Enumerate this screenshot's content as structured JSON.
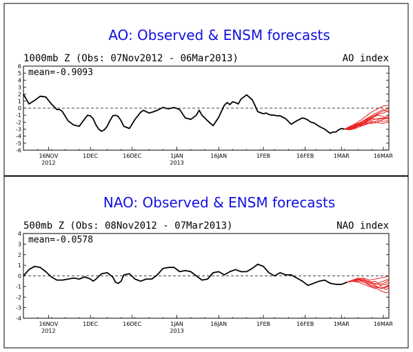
{
  "colors": {
    "observed": "#000000",
    "forecast": "#e82020",
    "title": "#1010e0",
    "frame": "#000000"
  },
  "chart_data": [
    {
      "type": "line",
      "title": "AO: Observed & ENSM forecasts",
      "subtitle": "1000mb Z (Obs: 07Nov2012 - 06Mar2013)",
      "index_label": "AO index",
      "mean_label": "mean=-0.9093",
      "ylim": [
        -6,
        6
      ],
      "yticks": [
        -6,
        -5,
        -4,
        -3,
        -2,
        -1,
        0,
        1,
        2,
        3,
        4,
        5,
        6
      ],
      "xlim_days": [
        0,
        131
      ],
      "xticks": [
        {
          "day": 9,
          "lines": [
            "16NOV",
            "2012"
          ]
        },
        {
          "day": 24,
          "lines": [
            "1DEC"
          ]
        },
        {
          "day": 39,
          "lines": [
            "16DEC"
          ]
        },
        {
          "day": 55,
          "lines": [
            "1JAN",
            "2013"
          ]
        },
        {
          "day": 70,
          "lines": [
            "16JAN"
          ]
        },
        {
          "day": 86,
          "lines": [
            "1FEB"
          ]
        },
        {
          "day": 101,
          "lines": [
            "16FEB"
          ]
        },
        {
          "day": 114,
          "lines": [
            "1MAR"
          ]
        },
        {
          "day": 129,
          "lines": [
            "16MAR"
          ]
        }
      ],
      "observed": {
        "x": [
          0,
          2,
          4,
          6,
          8,
          10,
          11,
          12,
          13,
          14,
          16,
          18,
          20,
          22,
          23,
          24,
          25,
          26,
          27,
          28,
          29,
          30,
          31,
          32,
          33,
          34,
          35,
          36,
          38,
          40,
          42,
          43,
          44,
          45,
          46,
          48,
          50,
          52,
          54,
          56,
          58,
          60,
          62,
          63,
          64,
          66,
          68,
          70,
          72,
          73,
          74,
          75,
          76,
          77,
          78,
          80,
          82,
          83,
          84,
          86,
          87,
          88,
          89,
          90,
          91,
          92,
          94,
          96,
          98,
          100,
          101,
          102,
          103,
          104,
          106,
          108,
          110,
          111,
          112,
          113,
          114,
          115
        ],
        "y": [
          2.0,
          0.6,
          1.1,
          1.7,
          1.6,
          0.6,
          0.2,
          -0.2,
          -0.2,
          -0.5,
          -1.8,
          -2.4,
          -2.6,
          -1.5,
          -1.0,
          -1.1,
          -1.5,
          -2.4,
          -3.0,
          -3.3,
          -3.1,
          -2.6,
          -1.8,
          -1.1,
          -1.0,
          -1.2,
          -1.8,
          -2.6,
          -2.9,
          -1.6,
          -0.6,
          -0.3,
          -0.5,
          -0.7,
          -0.6,
          -0.3,
          0.1,
          -0.1,
          0.1,
          -0.2,
          -1.4,
          -1.6,
          -1.0,
          -0.3,
          -1.0,
          -1.8,
          -2.5,
          -1.3,
          0.4,
          0.8,
          0.5,
          0.9,
          0.8,
          0.6,
          1.3,
          1.9,
          1.2,
          0.4,
          -0.5,
          -0.8,
          -0.7,
          -0.9,
          -1.0,
          -1.0,
          -1.1,
          -1.1,
          -1.5,
          -2.3,
          -1.8,
          -1.4,
          -1.5,
          -1.7,
          -2.0,
          -2.1,
          -2.6,
          -3.0,
          -3.6,
          -3.4,
          -3.4,
          -3.1,
          -2.9,
          -3.0
        ]
      },
      "forecast_x": [
        115,
        117,
        119,
        121,
        123,
        125,
        127,
        129,
        131
      ],
      "forecast_members": [
        [
          -3.0,
          -2.6,
          -2.2,
          -1.7,
          -1.1,
          -0.5,
          -0.1,
          0.3,
          0.4
        ],
        [
          -3.0,
          -2.8,
          -2.3,
          -2.0,
          -1.5,
          -1.0,
          -0.6,
          -0.2,
          -0.6
        ],
        [
          -3.0,
          -2.9,
          -2.5,
          -2.2,
          -1.8,
          -1.4,
          -1.0,
          -1.2,
          -1.6
        ],
        [
          -3.0,
          -3.0,
          -2.7,
          -2.4,
          -2.0,
          -1.7,
          -1.5,
          -1.4,
          -1.1
        ],
        [
          -3.0,
          -3.1,
          -2.8,
          -2.6,
          -2.3,
          -2.0,
          -1.8,
          -1.9,
          -1.7
        ],
        [
          -3.0,
          -2.7,
          -2.4,
          -2.1,
          -1.6,
          -1.2,
          -0.8,
          -0.4,
          0.0
        ],
        [
          -3.0,
          -2.9,
          -2.6,
          -2.3,
          -1.9,
          -1.5,
          -1.6,
          -1.5,
          -1.3
        ],
        [
          -3.0,
          -3.1,
          -2.9,
          -2.5,
          -2.2,
          -1.9,
          -2.1,
          -2.2,
          -1.9
        ],
        [
          -3.0,
          -2.8,
          -2.5,
          -2.0,
          -1.7,
          -1.3,
          -0.9,
          -0.7,
          -0.3
        ],
        [
          -3.0,
          -3.0,
          -2.7,
          -2.3,
          -2.1,
          -2.2,
          -2.0,
          -1.6,
          -1.4
        ]
      ]
    },
    {
      "type": "line",
      "title": "NAO: Observed & ENSM forecasts",
      "subtitle": "500mb Z (Obs: 08Nov2012 - 07Mar2013)",
      "index_label": "NAO index",
      "mean_label": "mean=-0.0578",
      "ylim": [
        -4,
        4
      ],
      "yticks": [
        -4,
        -3,
        -2,
        -1,
        0,
        1,
        2,
        3,
        4
      ],
      "xlim_days": [
        0,
        131
      ],
      "xticks": [
        {
          "day": 9,
          "lines": [
            "16NOV",
            "2012"
          ]
        },
        {
          "day": 24,
          "lines": [
            "1DEC"
          ]
        },
        {
          "day": 39,
          "lines": [
            "16DEC"
          ]
        },
        {
          "day": 55,
          "lines": [
            "1JAN",
            "2013"
          ]
        },
        {
          "day": 70,
          "lines": [
            "16JAN"
          ]
        },
        {
          "day": 86,
          "lines": [
            "1FEB"
          ]
        },
        {
          "day": 101,
          "lines": [
            "16FEB"
          ]
        },
        {
          "day": 114,
          "lines": [
            "1MAR"
          ]
        },
        {
          "day": 129,
          "lines": [
            "16MAR"
          ]
        }
      ],
      "observed": {
        "x": [
          0,
          2,
          4,
          6,
          8,
          10,
          12,
          14,
          16,
          18,
          20,
          22,
          24,
          25,
          26,
          28,
          30,
          32,
          33,
          34,
          35,
          36,
          38,
          40,
          42,
          44,
          46,
          48,
          50,
          52,
          54,
          56,
          58,
          60,
          62,
          64,
          66,
          68,
          70,
          72,
          74,
          76,
          78,
          80,
          82,
          84,
          86,
          88,
          90,
          92,
          94,
          96,
          98,
          100,
          102,
          104,
          106,
          108,
          110,
          112,
          114,
          116
        ],
        "y": [
          0.0,
          0.6,
          0.9,
          0.8,
          0.4,
          -0.1,
          -0.4,
          -0.4,
          -0.3,
          -0.2,
          -0.3,
          -0.1,
          -0.3,
          -0.5,
          -0.3,
          0.2,
          0.3,
          -0.1,
          -0.6,
          -0.7,
          -0.5,
          0.1,
          0.2,
          -0.3,
          -0.5,
          -0.3,
          -0.3,
          0.1,
          0.7,
          0.8,
          0.8,
          0.4,
          0.5,
          0.4,
          0.0,
          -0.4,
          -0.3,
          0.3,
          0.4,
          0.1,
          0.4,
          0.6,
          0.4,
          0.4,
          0.7,
          1.1,
          0.9,
          0.3,
          0.0,
          0.3,
          0.1,
          0.1,
          -0.2,
          -0.5,
          -0.9,
          -0.7,
          -0.5,
          -0.4,
          -0.7,
          -0.8,
          -0.8,
          -0.6
        ]
      },
      "forecast_x": [
        116,
        118,
        120,
        122,
        124,
        126,
        128,
        130,
        131
      ],
      "forecast_members": [
        [
          -0.6,
          -0.5,
          -0.3,
          -0.2,
          -0.4,
          -0.3,
          -0.2,
          -0.1,
          0.0
        ],
        [
          -0.6,
          -0.5,
          -0.4,
          -0.5,
          -0.7,
          -0.8,
          -0.6,
          -0.4,
          -0.3
        ],
        [
          -0.6,
          -0.4,
          -0.3,
          -0.4,
          -0.5,
          -0.9,
          -1.2,
          -1.0,
          -0.8
        ],
        [
          -0.6,
          -0.5,
          -0.5,
          -0.6,
          -0.9,
          -1.1,
          -1.4,
          -1.6,
          -1.5
        ],
        [
          -0.6,
          -0.4,
          -0.2,
          -0.3,
          -0.6,
          -0.5,
          -0.8,
          -0.6,
          -0.4
        ],
        [
          -0.6,
          -0.5,
          -0.6,
          -0.8,
          -1.0,
          -1.2,
          -1.0,
          -1.3,
          -1.1
        ],
        [
          -0.6,
          -0.4,
          -0.3,
          -0.5,
          -0.8,
          -1.0,
          -1.2,
          -1.1,
          -0.9
        ],
        [
          -0.6,
          -0.5,
          -0.4,
          -0.4,
          -0.6,
          -0.7,
          -0.9,
          -0.8,
          -0.6
        ]
      ]
    }
  ]
}
